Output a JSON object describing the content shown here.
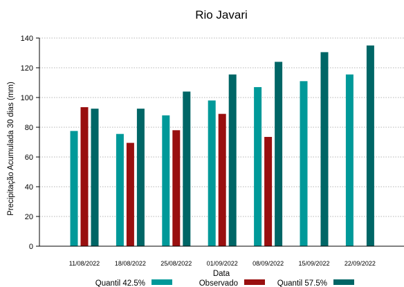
{
  "chart_data": {
    "type": "bar",
    "title": "Rio Javari",
    "xlabel": "Data",
    "ylabel": "Precipitação Acumulada 30 dias (mm)",
    "categories": [
      "11/08/2022",
      "18/08/2022",
      "25/08/2022",
      "01/09/2022",
      "08/09/2022",
      "15/09/2022",
      "22/09/2022"
    ],
    "ylim": [
      0,
      140
    ],
    "yticks": [
      0,
      20,
      40,
      60,
      80,
      100,
      120,
      140
    ],
    "grid": "horizontal dotted",
    "legend_position": "bottom",
    "series": [
      {
        "name": "Quantil 42.5%",
        "color": "#009999",
        "values": [
          77.5,
          75.5,
          88,
          98,
          107,
          111,
          115.5
        ]
      },
      {
        "name": "Observado",
        "color": "#990f0f",
        "values": [
          93.5,
          69.5,
          78,
          89,
          73.5,
          null,
          null
        ]
      },
      {
        "name": "Quantil 57.5%",
        "color": "#006666",
        "values": [
          92.5,
          92.5,
          104,
          115.5,
          124,
          130.5,
          135
        ]
      }
    ]
  }
}
